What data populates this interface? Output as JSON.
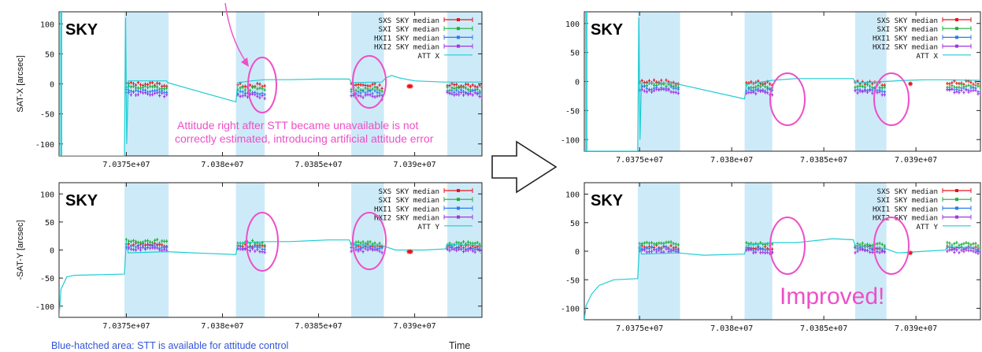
{
  "colors": {
    "sxs": "#e8151b",
    "sxi": "#1fae3a",
    "hxi1": "#2a7de8",
    "hxi2": "#a136e0",
    "att": "#20cdd3",
    "shade": "#cdeaf8",
    "annotation": "#ee4fc8",
    "note_blue": "#3355d6"
  },
  "annotations": {
    "stt_unavailable_line1": "Attitude right after STT became unavailable is not",
    "stt_unavailable_line2": "correctly estimated, introducing artificial attitude error",
    "improved": "Improved!",
    "blue_hatched": "Blue-hatched area: STT is available for attitude control",
    "time": "Time"
  },
  "chart_data": [
    {
      "id": "before-x",
      "type": "line",
      "panel_label": "SKY",
      "ylabel": "SAT-X [arcsec]",
      "xlim": [
        70371500,
        70393500
      ],
      "ylim": [
        -120,
        120
      ],
      "yticks": [
        -100,
        -50,
        0,
        50,
        100
      ],
      "xticks": [
        70375000,
        70380000,
        70385000,
        70390000
      ],
      "xtick_labels": [
        "7.0375e+07",
        "7.038e+07",
        "7.0385e+07",
        "7.039e+07"
      ],
      "stt_available_spans": [
        [
          70374900,
          70377200
        ],
        [
          70380700,
          70382200
        ],
        [
          70386700,
          70388400
        ],
        [
          70391700,
          70393500
        ]
      ],
      "series": [
        {
          "name": "SXS SKY median",
          "color_key": "sxs",
          "segments": [
            [
              70375000,
              70377100,
              0
            ],
            [
              70380800,
              70382200,
              -2
            ],
            [
              70386700,
              70388300,
              -2
            ],
            [
              70391700,
              70393500,
              -2
            ]
          ]
        },
        {
          "name": "SXI SKY median",
          "color_key": "sxi",
          "segments": [
            [
              70375000,
              70377100,
              -6
            ],
            [
              70380800,
              70382200,
              -8
            ],
            [
              70386700,
              70388300,
              -8
            ],
            [
              70391700,
              70393500,
              -8
            ]
          ]
        },
        {
          "name": "HXI1 SKY median",
          "color_key": "hxi1",
          "segments": [
            [
              70375000,
              70377100,
              -11
            ],
            [
              70380800,
              70382200,
              -14
            ],
            [
              70386700,
              70388300,
              -14
            ],
            [
              70391700,
              70393500,
              -13
            ]
          ]
        },
        {
          "name": "HXI2 SKY median",
          "color_key": "hxi2",
          "segments": [
            [
              70375000,
              70377100,
              -16
            ],
            [
              70380800,
              70382200,
              -20
            ],
            [
              70386700,
              70388300,
              -20
            ],
            [
              70391700,
              70393500,
              -17
            ]
          ]
        },
        {
          "name": "ATT X",
          "color_key": "att",
          "points": [
            [
              70371500,
              -120
            ],
            [
              70371580,
              -120
            ],
            [
              70371580,
              120
            ],
            [
              70371640,
              120
            ],
            [
              70371640,
              -120
            ],
            [
              70374900,
              -120
            ],
            [
              70374960,
              110
            ],
            [
              70375020,
              -100
            ],
            [
              70375100,
              5
            ],
            [
              70377100,
              5
            ],
            [
              70377150,
              2
            ],
            [
              70380700,
              -30
            ],
            [
              70380800,
              2
            ],
            [
              70381500,
              5
            ],
            [
              70382200,
              7
            ],
            [
              70383500,
              7
            ],
            [
              70385000,
              8
            ],
            [
              70386600,
              8
            ],
            [
              70386700,
              2
            ],
            [
              70388300,
              3
            ],
            [
              70388500,
              10
            ],
            [
              70388800,
              14
            ],
            [
              70389200,
              10
            ],
            [
              70390000,
              5
            ],
            [
              70391500,
              3
            ],
            [
              70393500,
              3
            ]
          ]
        }
      ]
    },
    {
      "id": "before-y",
      "type": "line",
      "panel_label": "SKY",
      "ylabel": "-SAT-Y [arcsec]",
      "xlim": [
        70371500,
        70393500
      ],
      "ylim": [
        -120,
        120
      ],
      "yticks": [
        -100,
        -50,
        0,
        50,
        100
      ],
      "xticks": [
        70375000,
        70380000,
        70385000,
        70390000
      ],
      "xtick_labels": [
        "7.0375e+07",
        "7.038e+07",
        "7.0385e+07",
        "7.039e+07"
      ],
      "stt_available_spans": [
        [
          70374900,
          70377200
        ],
        [
          70380700,
          70382200
        ],
        [
          70386700,
          70388400
        ],
        [
          70391700,
          70393500
        ]
      ],
      "series": [
        {
          "name": "SXS SKY median",
          "color_key": "sxs",
          "segments": [
            [
              70375000,
              70377100,
              10
            ],
            [
              70380800,
              70382200,
              8
            ],
            [
              70386700,
              70388300,
              8
            ],
            [
              70391700,
              70393500,
              7
            ]
          ]
        },
        {
          "name": "SXI SKY median",
          "color_key": "sxi",
          "segments": [
            [
              70375000,
              70377100,
              16
            ],
            [
              70380800,
              70382200,
              14
            ],
            [
              70386700,
              70388300,
              12
            ],
            [
              70391700,
              70393500,
              12
            ]
          ]
        },
        {
          "name": "HXI1 SKY median",
          "color_key": "hxi1",
          "segments": [
            [
              70375000,
              70377100,
              6
            ],
            [
              70380800,
              70382200,
              4
            ],
            [
              70386700,
              70388300,
              4
            ],
            [
              70391700,
              70393500,
              4
            ]
          ]
        },
        {
          "name": "HXI2 SKY median",
          "color_key": "hxi2",
          "segments": [
            [
              70375000,
              70377100,
              2
            ],
            [
              70380800,
              70382200,
              0
            ],
            [
              70386700,
              70388300,
              0
            ],
            [
              70391700,
              70393500,
              0
            ]
          ]
        },
        {
          "name": "ATT Y",
          "color_key": "att",
          "points": [
            [
              70371500,
              -120
            ],
            [
              70371600,
              -70
            ],
            [
              70371900,
              -48
            ],
            [
              70372300,
              -45
            ],
            [
              70373500,
              -44
            ],
            [
              70374900,
              -43
            ],
            [
              70375000,
              15
            ],
            [
              70375100,
              -5
            ],
            [
              70377100,
              -3
            ],
            [
              70378500,
              -5
            ],
            [
              70380700,
              -8
            ],
            [
              70380800,
              12
            ],
            [
              70382200,
              15
            ],
            [
              70383500,
              15
            ],
            [
              70385500,
              18
            ],
            [
              70386600,
              18
            ],
            [
              70386700,
              10
            ],
            [
              70388300,
              8
            ],
            [
              70389000,
              0
            ],
            [
              70390500,
              0
            ],
            [
              70391600,
              2
            ],
            [
              70391700,
              10
            ],
            [
              70393500,
              8
            ]
          ]
        }
      ]
    },
    {
      "id": "after-x",
      "type": "line",
      "panel_label": "SKY",
      "ylabel": "",
      "xlim": [
        70372000,
        70393500
      ],
      "ylim": [
        -120,
        120
      ],
      "yticks": [
        -100,
        -50,
        0,
        50,
        100
      ],
      "xticks": [
        70375000,
        70380000,
        70385000,
        70390000
      ],
      "xtick_labels": [
        "7.0375e+07",
        "7.038e+07",
        "7.0385e+07",
        "7.039e+07"
      ],
      "stt_available_spans": [
        [
          70374900,
          70377200
        ],
        [
          70380700,
          70382200
        ],
        [
          70386700,
          70388400
        ]
      ],
      "series": [
        {
          "name": "SXS SKY median",
          "color_key": "sxs",
          "segments": [
            [
              70375000,
              70377100,
              0
            ],
            [
              70380800,
              70382200,
              -2
            ],
            [
              70386700,
              70388300,
              -2
            ],
            [
              70391700,
              70393500,
              -2
            ]
          ]
        },
        {
          "name": "SXI SKY median",
          "color_key": "sxi",
          "segments": [
            [
              70375000,
              70377100,
              -6
            ],
            [
              70380800,
              70382200,
              -8
            ],
            [
              70386700,
              70388300,
              -8
            ],
            [
              70391700,
              70393500,
              -8
            ]
          ]
        },
        {
          "name": "HXI1 SKY median",
          "color_key": "hxi1",
          "segments": [
            [
              70375000,
              70377100,
              -11
            ],
            [
              70380800,
              70382200,
              -14
            ],
            [
              70386700,
              70388300,
              -14
            ],
            [
              70391700,
              70393500,
              -13
            ]
          ]
        },
        {
          "name": "HXI2 SKY median",
          "color_key": "hxi2",
          "segments": [
            [
              70375000,
              70377100,
              -16
            ],
            [
              70380800,
              70382200,
              -18
            ],
            [
              70386700,
              70388300,
              -18
            ],
            [
              70391700,
              70393500,
              -16
            ]
          ]
        },
        {
          "name": "ATT X",
          "color_key": "att",
          "points": [
            [
              70372000,
              -120
            ],
            [
              70372080,
              -120
            ],
            [
              70372080,
              120
            ],
            [
              70372140,
              120
            ],
            [
              70372140,
              -120
            ],
            [
              70374900,
              -120
            ],
            [
              70374960,
              110
            ],
            [
              70375020,
              -100
            ],
            [
              70375100,
              -3
            ],
            [
              70377100,
              -3
            ],
            [
              70377150,
              -5
            ],
            [
              70380700,
              -30
            ],
            [
              70380800,
              -5
            ],
            [
              70382200,
              2
            ],
            [
              70383500,
              5
            ],
            [
              70385000,
              5
            ],
            [
              70386600,
              5
            ],
            [
              70386700,
              -2
            ],
            [
              70388300,
              0
            ],
            [
              70389500,
              2
            ],
            [
              70390500,
              3
            ],
            [
              70391500,
              3
            ],
            [
              70393500,
              2
            ]
          ]
        }
      ]
    },
    {
      "id": "after-y",
      "type": "line",
      "panel_label": "SKY",
      "ylabel": "",
      "xlim": [
        70372000,
        70393500
      ],
      "ylim": [
        -120,
        120
      ],
      "yticks": [
        -100,
        -50,
        0,
        50,
        100
      ],
      "xticks": [
        70375000,
        70380000,
        70385000,
        70390000
      ],
      "xtick_labels": [
        "7.0375e+07",
        "7.038e+07",
        "7.0385e+07",
        "7.039e+07"
      ],
      "stt_available_spans": [
        [
          70374900,
          70377200
        ],
        [
          70380700,
          70382200
        ],
        [
          70386700,
          70388400
        ]
      ],
      "series": [
        {
          "name": "SXS SKY median",
          "color_key": "sxs",
          "segments": [
            [
              70375000,
              70377100,
              8
            ],
            [
              70380800,
              70382200,
              6
            ],
            [
              70386700,
              70388300,
              6
            ],
            [
              70391700,
              70393500,
              6
            ]
          ]
        },
        {
          "name": "SXI SKY median",
          "color_key": "sxi",
          "segments": [
            [
              70375000,
              70377100,
              14
            ],
            [
              70380800,
              70382200,
              14
            ],
            [
              70386700,
              70388300,
              12
            ],
            [
              70391700,
              70393500,
              12
            ]
          ]
        },
        {
          "name": "HXI1 SKY median",
          "color_key": "hxi1",
          "segments": [
            [
              70375000,
              70377100,
              5
            ],
            [
              70380800,
              70382200,
              4
            ],
            [
              70386700,
              70388300,
              4
            ],
            [
              70391700,
              70393500,
              4
            ]
          ]
        },
        {
          "name": "HXI2 SKY median",
          "color_key": "hxi2",
          "segments": [
            [
              70375000,
              70377100,
              1
            ],
            [
              70380800,
              70382200,
              0
            ],
            [
              70386700,
              70388300,
              0
            ],
            [
              70391700,
              70393500,
              0
            ]
          ]
        },
        {
          "name": "ATT Y",
          "color_key": "att",
          "points": [
            [
              70372000,
              -120
            ],
            [
              70372100,
              -95
            ],
            [
              70372400,
              -75
            ],
            [
              70372800,
              -60
            ],
            [
              70373600,
              -50
            ],
            [
              70374900,
              -48
            ],
            [
              70375000,
              15
            ],
            [
              70375100,
              -5
            ],
            [
              70377100,
              -3
            ],
            [
              70378500,
              -7
            ],
            [
              70380700,
              -5
            ],
            [
              70380800,
              10
            ],
            [
              70382200,
              15
            ],
            [
              70383500,
              15
            ],
            [
              70385500,
              22
            ],
            [
              70386600,
              20
            ],
            [
              70386700,
              10
            ],
            [
              70388300,
              5
            ],
            [
              70389000,
              -3
            ],
            [
              70390500,
              0
            ],
            [
              70391600,
              2
            ],
            [
              70391700,
              8
            ],
            [
              70393500,
              6
            ]
          ]
        }
      ]
    }
  ]
}
